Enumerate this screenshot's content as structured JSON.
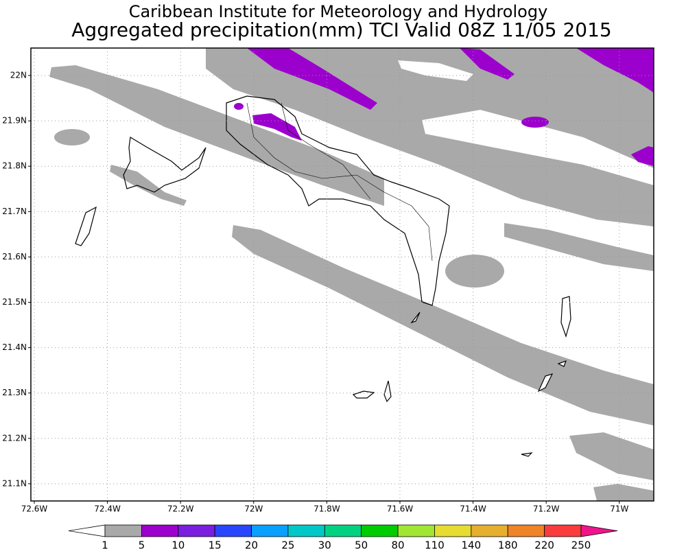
{
  "header": {
    "title": "Caribbean Institute for Meteorology and Hydrology",
    "subtitle": "Aggregated precipitation(mm) TCI Valid 08Z 11/05 2015"
  },
  "map": {
    "lon_labels": [
      "72.6W",
      "72.4W",
      "72.2W",
      "72W",
      "71.8W",
      "71.6W",
      "71.4W",
      "71.2W",
      "71W"
    ],
    "lat_labels": [
      "22N",
      "21.9N",
      "21.8N",
      "21.7N",
      "21.6N",
      "21.5N",
      "21.4N",
      "21.3N",
      "21.2N",
      "21.1N"
    ]
  },
  "colorbar": {
    "levels": [
      1,
      5,
      10,
      15,
      20,
      25,
      30,
      50,
      80,
      110,
      140,
      180,
      220,
      250
    ],
    "colors": [
      "#ffffff",
      "#a9a9a9",
      "#9b00cd",
      "#7a1ee0",
      "#2846ff",
      "#0aa0ff",
      "#00c8c8",
      "#00d282",
      "#00cc00",
      "#a0e632",
      "#e6dc32",
      "#e6af2d",
      "#f08228",
      "#fa3c3c",
      "#f0148c"
    ]
  }
}
